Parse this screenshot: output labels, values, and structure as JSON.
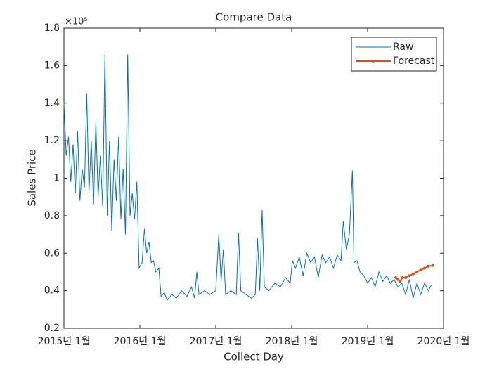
{
  "chart_data": {
    "type": "line",
    "title": "Compare Data",
    "x_label": "Collect Day",
    "y_label": "Sales Price",
    "y_exponent": "×10⁵",
    "xlim": [
      2015,
      2020
    ],
    "ylim": [
      0.2,
      1.8
    ],
    "xticks": [
      {
        "value": 2015,
        "label": "2015년 1월"
      },
      {
        "value": 2016,
        "label": "2016년 1월"
      },
      {
        "value": 2017,
        "label": "2017년 1월"
      },
      {
        "value": 2018,
        "label": "2018년 1월"
      },
      {
        "value": 2019,
        "label": "2019년 1월"
      },
      {
        "value": 2020,
        "label": "2020년 1월"
      }
    ],
    "yticks": [
      0.2,
      0.4,
      0.6,
      0.8,
      1,
      1.2,
      1.4,
      1.6,
      1.8
    ],
    "legend": "top-right",
    "series": [
      {
        "name": "Raw",
        "color": "#0072bd",
        "marker": false,
        "x": [
          2015.0,
          2015.03,
          2015.06,
          2015.09,
          2015.12,
          2015.15,
          2015.18,
          2015.21,
          2015.24,
          2015.27,
          2015.3,
          2015.33,
          2015.36,
          2015.39,
          2015.42,
          2015.45,
          2015.48,
          2015.51,
          2015.54,
          2015.57,
          2015.6,
          2015.63,
          2015.66,
          2015.69,
          2015.72,
          2015.75,
          2015.78,
          2015.81,
          2015.84,
          2015.87,
          2015.9,
          2015.93,
          2015.96,
          2015.99,
          2016.03,
          2016.06,
          2016.09,
          2016.12,
          2016.15,
          2016.18,
          2016.21,
          2016.25,
          2016.28,
          2016.32,
          2016.36,
          2016.42,
          2016.48,
          2016.55,
          2016.62,
          2016.68,
          2016.72,
          2016.75,
          2016.78,
          2016.85,
          2016.92,
          2017.0,
          2017.04,
          2017.07,
          2017.1,
          2017.13,
          2017.2,
          2017.27,
          2017.3,
          2017.33,
          2017.4,
          2017.47,
          2017.52,
          2017.55,
          2017.58,
          2017.61,
          2017.64,
          2017.7,
          2017.78,
          2017.85,
          2017.92,
          2017.98,
          2018.01,
          2018.05,
          2018.1,
          2018.15,
          2018.2,
          2018.25,
          2018.3,
          2018.35,
          2018.4,
          2018.45,
          2018.5,
          2018.55,
          2018.6,
          2018.65,
          2018.68,
          2018.72,
          2018.76,
          2018.8,
          2018.82,
          2018.86,
          2018.9,
          2018.95,
          2019.0,
          2019.05,
          2019.1,
          2019.15,
          2019.2,
          2019.25,
          2019.3,
          2019.35,
          2019.4,
          2019.45,
          2019.5,
          2019.55,
          2019.6,
          2019.65,
          2019.7,
          2019.75,
          2019.8,
          2019.84
        ],
        "values": [
          1.4,
          1.12,
          1.22,
          0.98,
          1.18,
          0.92,
          1.25,
          0.88,
          1.05,
          0.95,
          1.45,
          0.92,
          1.2,
          0.86,
          1.3,
          0.9,
          1.12,
          0.85,
          1.66,
          0.8,
          1.2,
          0.72,
          1.1,
          0.88,
          1.22,
          0.78,
          1.05,
          0.7,
          1.66,
          0.8,
          0.92,
          0.78,
          0.98,
          0.52,
          0.55,
          0.73,
          0.6,
          0.66,
          0.55,
          0.56,
          0.5,
          0.52,
          0.37,
          0.39,
          0.35,
          0.38,
          0.36,
          0.4,
          0.37,
          0.42,
          0.36,
          0.5,
          0.38,
          0.4,
          0.38,
          0.4,
          0.7,
          0.45,
          0.62,
          0.38,
          0.4,
          0.38,
          0.71,
          0.4,
          0.38,
          0.36,
          0.38,
          0.68,
          0.4,
          0.83,
          0.42,
          0.4,
          0.44,
          0.42,
          0.47,
          0.44,
          0.56,
          0.52,
          0.58,
          0.48,
          0.6,
          0.55,
          0.58,
          0.47,
          0.59,
          0.55,
          0.58,
          0.52,
          0.59,
          0.56,
          0.77,
          0.62,
          0.7,
          1.04,
          0.55,
          0.56,
          0.5,
          0.48,
          0.44,
          0.47,
          0.42,
          0.5,
          0.45,
          0.48,
          0.44,
          0.46,
          0.42,
          0.44,
          0.38,
          0.46,
          0.36,
          0.44,
          0.38,
          0.44,
          0.4,
          0.43
        ]
      },
      {
        "name": "Forecast",
        "color": "#d95319",
        "marker": true,
        "x": [
          2019.37,
          2019.4,
          2019.43,
          2019.46,
          2019.5,
          2019.55,
          2019.6,
          2019.65,
          2019.7,
          2019.75,
          2019.8,
          2019.86
        ],
        "values": [
          0.47,
          0.46,
          0.45,
          0.47,
          0.47,
          0.48,
          0.49,
          0.5,
          0.51,
          0.52,
          0.53,
          0.535
        ]
      }
    ]
  }
}
